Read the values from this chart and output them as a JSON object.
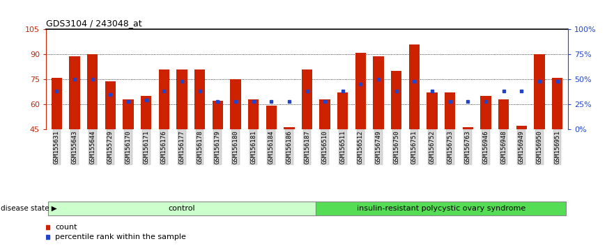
{
  "title": "GDS3104 / 243048_at",
  "samples": [
    "GSM155631",
    "GSM155643",
    "GSM155644",
    "GSM155729",
    "GSM156170",
    "GSM156171",
    "GSM156176",
    "GSM156177",
    "GSM156178",
    "GSM156179",
    "GSM156180",
    "GSM156181",
    "GSM156184",
    "GSM156186",
    "GSM156187",
    "GSM156510",
    "GSM156511",
    "GSM156512",
    "GSM156749",
    "GSM156750",
    "GSM156751",
    "GSM156752",
    "GSM156753",
    "GSM156763",
    "GSM156946",
    "GSM156948",
    "GSM156949",
    "GSM156950",
    "GSM156951"
  ],
  "red_values": [
    76,
    89,
    90,
    74,
    63,
    65,
    81,
    81,
    81,
    62,
    75,
    63,
    59,
    46,
    81,
    63,
    67,
    91,
    89,
    80,
    96,
    67,
    67,
    46,
    65,
    63,
    47,
    90,
    76
  ],
  "blue_percentile": [
    38,
    50,
    50,
    35,
    28,
    29,
    38,
    48,
    38,
    28,
    28,
    28,
    28,
    28,
    38,
    28,
    38,
    45,
    50,
    38,
    48,
    38,
    28,
    28,
    28,
    38,
    38,
    48,
    48
  ],
  "n_control": 15,
  "ylim_left": [
    45,
    105
  ],
  "ylim_right": [
    0,
    100
  ],
  "yticks_left": [
    45,
    60,
    75,
    90,
    105
  ],
  "yticks_right": [
    0,
    25,
    50,
    75,
    100
  ],
  "ytick_labels_right": [
    "0%",
    "25%",
    "50%",
    "75%",
    "100%"
  ],
  "group_labels": [
    "control",
    "insulin-resistant polycystic ovary syndrome"
  ],
  "legend_items": [
    "count",
    "percentile rank within the sample"
  ],
  "bar_color": "#cc2200",
  "dot_color": "#2244cc",
  "control_bg": "#ccffcc",
  "disease_bg": "#55dd55",
  "disease_state_label": "disease state"
}
